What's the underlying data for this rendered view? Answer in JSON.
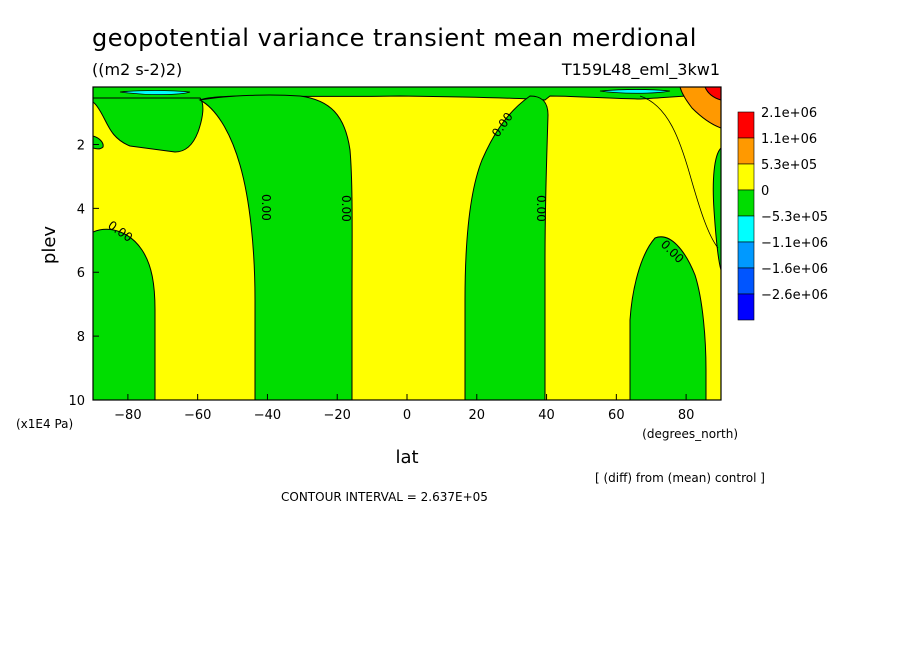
{
  "chart_data": {
    "type": "contour",
    "title": "geopotential variance transient mean merdional",
    "units": "((m2 s-2)2)",
    "run_label": "T159L48_eml_3kw1",
    "xlabel": "lat",
    "xunits": "(degrees_north)",
    "ylabel": "plev",
    "yunits": "(x1E4 Pa)",
    "xlim": [
      -90,
      90
    ],
    "ylim": [
      10,
      0.2
    ],
    "x_ticks": [
      -80,
      -60,
      -40,
      -20,
      0,
      20,
      40,
      60,
      80
    ],
    "y_ticks": [
      2,
      4,
      6,
      8,
      10
    ],
    "contour_label": "0.00",
    "contour_interval_text": "CONTOUR INTERVAL = 2.637E+05",
    "diff_note": "[ (diff) from (mean) control ]",
    "legend": [
      {
        "label": "2.1e+06",
        "color": "#ff0000"
      },
      {
        "label": "1.1e+06",
        "color": "#ff9900"
      },
      {
        "label": "5.3e+05",
        "color": "#ffff00"
      },
      {
        "label": "0",
        "color": "#00dd00"
      },
      {
        "label": "-5.3e+05",
        "color": "#00ffff"
      },
      {
        "label": "-1.1e+06",
        "color": "#0099ff"
      },
      {
        "label": "-1.6e+06",
        "color": "#0055ff"
      },
      {
        "label": "-2.6e+06",
        "color": "#0000ff"
      }
    ],
    "negative_bands": [
      {
        "name": "band-sh-polar",
        "x_range": [
          -90,
          -70
        ],
        "color": "#00dd00"
      },
      {
        "name": "band-sh-midlat",
        "x_range": [
          -42,
          -17
        ],
        "color": "#00dd00"
      },
      {
        "name": "band-nh-midlat",
        "x_range": [
          17,
          40
        ],
        "color": "#00dd00"
      },
      {
        "name": "band-nh-polar",
        "x_range": [
          63,
          88
        ],
        "color": "#00dd00"
      }
    ]
  }
}
